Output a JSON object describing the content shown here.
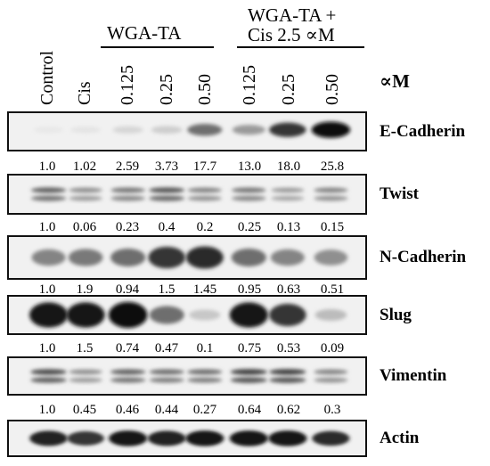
{
  "group_labels": {
    "wga_ta": "WGA-TA",
    "combo_line1": "WGA-TA +",
    "combo_line2": "Cis 2.5 ∝M"
  },
  "unit_label": "∝M",
  "lanes": [
    "Control",
    "Cis",
    "0.125",
    "0.25",
    "0.50",
    "0.125",
    "0.25",
    "0.50"
  ],
  "blots": [
    {
      "name": "E-Cadherin",
      "intensities": [
        0.0,
        0.02,
        0.08,
        0.12,
        0.55,
        0.35,
        0.8,
        1.0
      ],
      "values": [
        "1.0",
        "1.02",
        "2.59",
        "3.73",
        "17.7",
        "13.0",
        "18.0",
        "25.8"
      ]
    },
    {
      "name": "Twist",
      "intensities": [
        0.6,
        0.4,
        0.5,
        0.65,
        0.45,
        0.5,
        0.35,
        0.45
      ],
      "values": [
        "1.0",
        "0.06",
        "0.23",
        "0.4",
        "0.2",
        "0.25",
        "0.13",
        "0.15"
      ]
    },
    {
      "name": "N-Cadherin",
      "intensities": [
        0.45,
        0.5,
        0.55,
        0.8,
        0.85,
        0.55,
        0.45,
        0.4
      ],
      "values": [
        "1.0",
        "1.9",
        "0.94",
        "1.5",
        "1.45",
        "0.95",
        "0.63",
        "0.51"
      ]
    },
    {
      "name": "Slug",
      "intensities": [
        0.95,
        0.95,
        1.0,
        0.55,
        0.15,
        0.95,
        0.8,
        0.2
      ],
      "values": [
        "1.0",
        "1.5",
        "0.74",
        "0.47",
        "0.1",
        "0.75",
        "0.53",
        "0.09"
      ]
    },
    {
      "name": "Vimentin",
      "intensities": [
        0.7,
        0.4,
        0.6,
        0.55,
        0.55,
        0.75,
        0.75,
        0.45
      ],
      "values": [
        "1.0",
        "0.45",
        "0.46",
        "0.44",
        "0.27",
        "0.64",
        "0.62",
        "0.3"
      ]
    },
    {
      "name": "Actin",
      "intensities": [
        0.9,
        0.8,
        0.95,
        0.9,
        0.95,
        0.95,
        0.95,
        0.85
      ],
      "values": []
    }
  ]
}
